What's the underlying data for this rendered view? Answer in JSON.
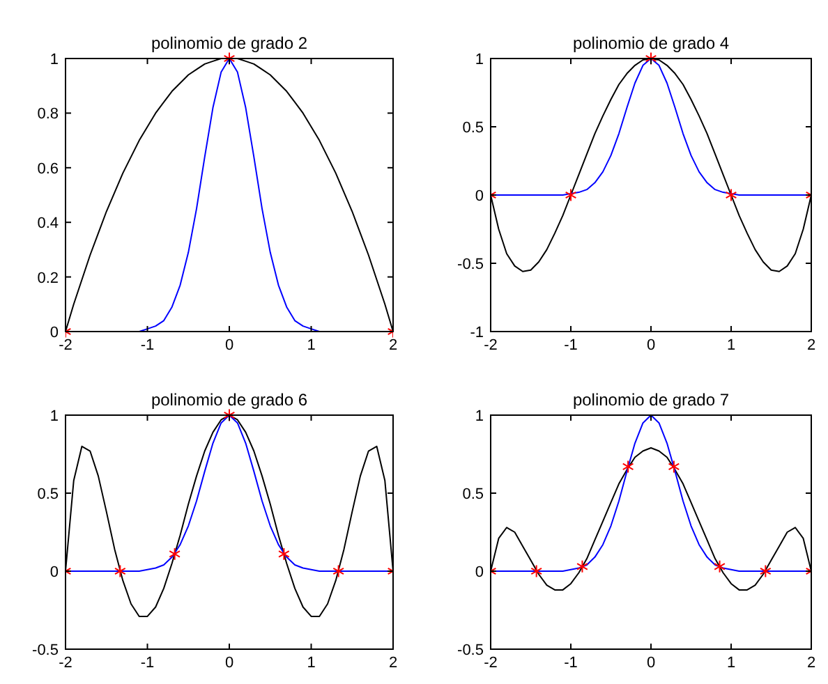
{
  "chart_data": [
    {
      "type": "line",
      "title": "polinomio de grado 2",
      "x": [
        -2,
        -1.9,
        -1.8,
        -1.7,
        -1.6,
        -1.5,
        -1.4,
        -1.3,
        -1.2,
        -1.1,
        -1,
        -0.9,
        -0.8,
        -0.7,
        -0.6,
        -0.5,
        -0.4,
        -0.3,
        -0.2,
        -0.1,
        0,
        0.1,
        0.2,
        0.3,
        0.4,
        0.5,
        0.6,
        0.7,
        0.8,
        0.9,
        1,
        1.1,
        1.2,
        1.3,
        1.4,
        1.5,
        1.6,
        1.7,
        1.8,
        1.9,
        2
      ],
      "xlim": [
        -2,
        2
      ],
      "xticks": [
        -2,
        -1,
        0,
        1,
        2
      ],
      "ylim": [
        0,
        1
      ],
      "yticks": [
        0,
        0.2,
        0.4,
        0.6,
        0.8,
        1
      ],
      "series": [
        {
          "color": "#000000",
          "values": [
            0,
            0.1,
            0.19,
            0.28,
            0.36,
            0.44,
            0.51,
            0.58,
            0.64,
            0.7,
            0.75,
            0.8,
            0.84,
            0.88,
            0.91,
            0.94,
            0.96,
            0.98,
            0.99,
            1,
            1,
            1,
            0.99,
            0.98,
            0.96,
            0.94,
            0.91,
            0.88,
            0.84,
            0.8,
            0.75,
            0.7,
            0.64,
            0.58,
            0.51,
            0.44,
            0.36,
            0.28,
            0.19,
            0.1,
            0
          ]
        },
        {
          "color": "#0000ff",
          "values": [
            null,
            null,
            null,
            null,
            null,
            null,
            null,
            null,
            null,
            0,
            0.01,
            0.02,
            0.04,
            0.09,
            0.17,
            0.29,
            0.45,
            0.64,
            0.82,
            0.95,
            1,
            0.95,
            0.82,
            0.64,
            0.45,
            0.29,
            0.17,
            0.09,
            0.04,
            0.02,
            0.01,
            0,
            null,
            null,
            null,
            null,
            null,
            null,
            null,
            null,
            null
          ]
        },
        {
          "type": "scatter",
          "marker": "cross",
          "color": "#ff0000",
          "x": [
            -2,
            0,
            2
          ],
          "values": [
            0,
            1,
            0
          ]
        }
      ]
    },
    {
      "type": "line",
      "title": "polinomio de grado 4",
      "x": [
        -2,
        -1.9,
        -1.8,
        -1.7,
        -1.6,
        -1.5,
        -1.4,
        -1.3,
        -1.2,
        -1.1,
        -1,
        -0.9,
        -0.8,
        -0.7,
        -0.6,
        -0.5,
        -0.4,
        -0.3,
        -0.2,
        -0.1,
        0,
        0.1,
        0.2,
        0.3,
        0.4,
        0.5,
        0.6,
        0.7,
        0.8,
        0.9,
        1,
        1.1,
        1.2,
        1.3,
        1.4,
        1.5,
        1.6,
        1.7,
        1.8,
        1.9,
        2
      ],
      "xlim": [
        -2,
        2
      ],
      "xticks": [
        -2,
        -1,
        0,
        1,
        2
      ],
      "ylim": [
        -1,
        1
      ],
      "yticks": [
        -1,
        -0.5,
        0,
        0.5,
        1
      ],
      "series": [
        {
          "color": "#000000",
          "values": [
            0,
            -0.25,
            -0.43,
            -0.52,
            -0.56,
            -0.55,
            -0.49,
            -0.4,
            -0.28,
            -0.15,
            0,
            0.15,
            0.3,
            0.45,
            0.58,
            0.7,
            0.81,
            0.89,
            0.95,
            0.99,
            1,
            0.99,
            0.95,
            0.89,
            0.81,
            0.7,
            0.58,
            0.45,
            0.3,
            0.15,
            0,
            -0.15,
            -0.28,
            -0.4,
            -0.49,
            -0.55,
            -0.56,
            -0.52,
            -0.43,
            -0.25,
            0
          ]
        },
        {
          "color": "#0000ff",
          "values": [
            0,
            0,
            0,
            0,
            0,
            0,
            0,
            0,
            0,
            0,
            0.01,
            0.02,
            0.04,
            0.09,
            0.17,
            0.29,
            0.45,
            0.64,
            0.82,
            0.95,
            1,
            0.95,
            0.82,
            0.64,
            0.45,
            0.29,
            0.17,
            0.09,
            0.04,
            0.02,
            0.01,
            0,
            0,
            0,
            0,
            0,
            0,
            0,
            0,
            0,
            0
          ]
        },
        {
          "type": "scatter",
          "marker": "cross",
          "color": "#ff0000",
          "x": [
            -2,
            -1,
            0,
            1,
            2
          ],
          "values": [
            0,
            0,
            1,
            0,
            0
          ]
        }
      ]
    },
    {
      "type": "line",
      "title": "polinomio de grado 6",
      "x": [
        -2,
        -1.9,
        -1.8,
        -1.7,
        -1.6,
        -1.5,
        -1.4,
        -1.3,
        -1.2,
        -1.1,
        -1,
        -0.9,
        -0.8,
        -0.7,
        -0.6,
        -0.5,
        -0.4,
        -0.3,
        -0.2,
        -0.1,
        0,
        0.1,
        0.2,
        0.3,
        0.4,
        0.5,
        0.6,
        0.7,
        0.8,
        0.9,
        1,
        1.1,
        1.2,
        1.3,
        1.4,
        1.5,
        1.6,
        1.7,
        1.8,
        1.9,
        2
      ],
      "xlim": [
        -2,
        2
      ],
      "xticks": [
        -2,
        -1,
        0,
        1,
        2
      ],
      "ylim": [
        -0.5,
        1
      ],
      "yticks": [
        -0.5,
        0,
        0.5,
        1
      ],
      "series": [
        {
          "color": "#000000",
          "values": [
            0,
            0.58,
            0.8,
            0.77,
            0.61,
            0.38,
            0.14,
            -0.06,
            -0.21,
            -0.29,
            -0.29,
            -0.23,
            -0.11,
            0.05,
            0.23,
            0.43,
            0.61,
            0.77,
            0.89,
            0.97,
            1,
            0.97,
            0.89,
            0.77,
            0.61,
            0.43,
            0.23,
            0.05,
            -0.11,
            -0.23,
            -0.29,
            -0.29,
            -0.21,
            -0.06,
            0.14,
            0.38,
            0.61,
            0.77,
            0.8,
            0.58,
            0
          ]
        },
        {
          "color": "#0000ff",
          "values": [
            0,
            0,
            0,
            0,
            0,
            0,
            0,
            0,
            0,
            0,
            0.01,
            0.02,
            0.04,
            0.09,
            0.17,
            0.29,
            0.45,
            0.64,
            0.82,
            0.95,
            1,
            0.95,
            0.82,
            0.64,
            0.45,
            0.29,
            0.17,
            0.09,
            0.04,
            0.02,
            0.01,
            0,
            0,
            0,
            0,
            0,
            0,
            0,
            0,
            0,
            0
          ]
        },
        {
          "type": "scatter",
          "marker": "cross",
          "color": "#ff0000",
          "x": [
            -2,
            -1.333,
            -0.667,
            0,
            0.667,
            1.333,
            2
          ],
          "values": [
            0,
            0,
            0.11,
            1,
            0.11,
            0,
            0
          ]
        }
      ]
    },
    {
      "type": "line",
      "title": "polinomio de grado 7",
      "x": [
        -2,
        -1.9,
        -1.8,
        -1.7,
        -1.6,
        -1.5,
        -1.4,
        -1.3,
        -1.2,
        -1.1,
        -1,
        -0.9,
        -0.8,
        -0.7,
        -0.6,
        -0.5,
        -0.4,
        -0.3,
        -0.2,
        -0.1,
        0,
        0.1,
        0.2,
        0.3,
        0.4,
        0.5,
        0.6,
        0.7,
        0.8,
        0.9,
        1,
        1.1,
        1.2,
        1.3,
        1.4,
        1.5,
        1.6,
        1.7,
        1.8,
        1.9,
        2
      ],
      "xlim": [
        -2,
        2
      ],
      "xticks": [
        -2,
        -1,
        0,
        1,
        2
      ],
      "ylim": [
        -0.5,
        1
      ],
      "yticks": [
        -0.5,
        0,
        0.5,
        1
      ],
      "series": [
        {
          "color": "#000000",
          "values": [
            0,
            0.21,
            0.28,
            0.25,
            0.16,
            0.07,
            -0.02,
            -0.09,
            -0.12,
            -0.12,
            -0.08,
            -0.01,
            0.08,
            0.2,
            0.32,
            0.44,
            0.56,
            0.65,
            0.73,
            0.77,
            0.79,
            0.77,
            0.73,
            0.65,
            0.56,
            0.44,
            0.32,
            0.2,
            0.08,
            -0.01,
            -0.08,
            -0.12,
            -0.12,
            -0.09,
            -0.02,
            0.07,
            0.16,
            0.25,
            0.28,
            0.21,
            0
          ]
        },
        {
          "color": "#0000ff",
          "values": [
            0,
            0,
            0,
            0,
            0,
            0,
            0,
            0,
            0,
            0,
            0.01,
            0.02,
            0.04,
            0.09,
            0.17,
            0.29,
            0.45,
            0.64,
            0.82,
            0.95,
            1,
            0.95,
            0.82,
            0.64,
            0.45,
            0.29,
            0.17,
            0.09,
            0.04,
            0.02,
            0.01,
            0,
            0,
            0,
            0,
            0,
            0,
            0,
            0,
            0,
            0
          ]
        },
        {
          "type": "scatter",
          "marker": "cross",
          "color": "#ff0000",
          "x": [
            -2,
            -1.429,
            -0.857,
            -0.286,
            0.286,
            0.857,
            1.429,
            2
          ],
          "values": [
            0,
            0,
            0.03,
            0.67,
            0.67,
            0.03,
            0,
            0
          ]
        }
      ]
    }
  ]
}
